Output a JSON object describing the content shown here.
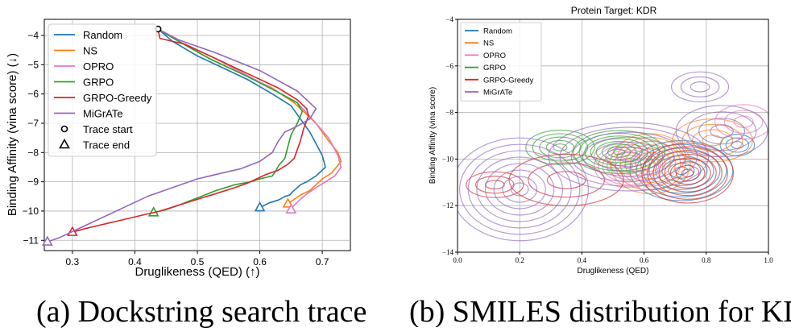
{
  "panel_a": {
    "caption": "(a) Dockstring search trace",
    "chart_data": {
      "type": "line",
      "title": "",
      "xlabel": "Druglikeness (QED) (↑)",
      "ylabel": "Binding Affinity (vina score) (↓)",
      "xlim": [
        0.255,
        0.745
      ],
      "ylim": [
        -11.35,
        -3.45
      ],
      "xticks": [
        0.3,
        0.4,
        0.5,
        0.6,
        0.7
      ],
      "xtick_labels": [
        "0.3",
        "0.4",
        "0.5",
        "0.6",
        "0.7"
      ],
      "yticks": [
        -4,
        -5,
        -6,
        -7,
        -8,
        -9,
        -10,
        -11
      ],
      "ytick_labels": [
        "−4",
        "−5",
        "−6",
        "−7",
        "−8",
        "−9",
        "−10",
        "−11"
      ],
      "grid": true,
      "legend_position": "top-left",
      "legend_markers": [
        {
          "label": "Trace start",
          "marker": "circle"
        },
        {
          "label": "Trace end",
          "marker": "triangle"
        }
      ],
      "start_point": {
        "x": 0.437,
        "y": -3.78
      },
      "series": [
        {
          "name": "Random",
          "color": "#1f77b4",
          "x": [
            0.437,
            0.46,
            0.5,
            0.54,
            0.58,
            0.62,
            0.65,
            0.68,
            0.7,
            0.705,
            0.69,
            0.675,
            0.665,
            0.66,
            0.652,
            0.648,
            0.64,
            0.63,
            0.615,
            0.6
          ],
          "y": [
            -3.78,
            -4.2,
            -4.7,
            -5.1,
            -5.5,
            -6.0,
            -6.4,
            -7.3,
            -8.1,
            -8.5,
            -8.8,
            -9.0,
            -9.1,
            -9.2,
            -9.35,
            -9.45,
            -9.5,
            -9.62,
            -9.72,
            -9.88
          ]
        },
        {
          "name": "NS",
          "color": "#ff7f0e",
          "x": [
            0.437,
            0.47,
            0.52,
            0.58,
            0.62,
            0.655,
            0.69,
            0.71,
            0.725,
            0.73,
            0.715,
            0.7,
            0.69,
            0.68,
            0.665,
            0.655,
            0.645
          ],
          "y": [
            -3.78,
            -4.2,
            -4.8,
            -5.4,
            -5.8,
            -6.3,
            -7.0,
            -7.6,
            -8.0,
            -8.3,
            -8.7,
            -8.9,
            -9.1,
            -9.3,
            -9.45,
            -9.6,
            -9.75
          ]
        },
        {
          "name": "OPRO",
          "color": "#e377c2",
          "x": [
            0.437,
            0.47,
            0.53,
            0.6,
            0.66,
            0.69,
            0.71,
            0.725,
            0.73,
            0.72,
            0.705,
            0.69,
            0.676,
            0.665,
            0.655,
            0.65
          ],
          "y": [
            -3.78,
            -4.2,
            -4.8,
            -5.6,
            -6.3,
            -7.0,
            -7.5,
            -8.1,
            -8.5,
            -8.8,
            -9.0,
            -9.2,
            -9.4,
            -9.6,
            -9.8,
            -9.95
          ]
        },
        {
          "name": "GRPO",
          "color": "#2ca02c",
          "x": [
            0.437,
            0.47,
            0.52,
            0.58,
            0.63,
            0.66,
            0.668,
            0.66,
            0.65,
            0.645,
            0.64,
            0.63,
            0.625,
            0.62,
            0.6,
            0.585,
            0.56,
            0.53,
            0.5,
            0.47,
            0.45,
            0.43
          ],
          "y": [
            -3.78,
            -4.2,
            -4.8,
            -5.4,
            -5.95,
            -6.3,
            -6.6,
            -7.0,
            -7.4,
            -7.8,
            -8.2,
            -8.45,
            -8.65,
            -8.8,
            -8.9,
            -9.0,
            -9.1,
            -9.3,
            -9.55,
            -9.8,
            -9.95,
            -10.05
          ]
        },
        {
          "name": "GRPO-Greedy",
          "color": "#d62728",
          "x": [
            0.437,
            0.44,
            0.48,
            0.53,
            0.58,
            0.63,
            0.66,
            0.675,
            0.678,
            0.67,
            0.665,
            0.66,
            0.655,
            0.645,
            0.63,
            0.61,
            0.595,
            0.58,
            0.56,
            0.53,
            0.5,
            0.47,
            0.44,
            0.41,
            0.38,
            0.35,
            0.32,
            0.3
          ],
          "y": [
            -3.78,
            -4.1,
            -4.3,
            -4.8,
            -5.3,
            -5.8,
            -6.2,
            -6.5,
            -6.75,
            -7.2,
            -7.6,
            -7.9,
            -8.2,
            -8.4,
            -8.6,
            -8.75,
            -8.9,
            -9.05,
            -9.2,
            -9.4,
            -9.6,
            -9.8,
            -10.0,
            -10.15,
            -10.3,
            -10.45,
            -10.6,
            -10.72
          ]
        },
        {
          "name": "MiGrATe",
          "color": "#9467bd",
          "x": [
            0.437,
            0.47,
            0.53,
            0.6,
            0.66,
            0.69,
            0.68,
            0.66,
            0.64,
            0.63,
            0.62,
            0.6,
            0.57,
            0.54,
            0.5,
            0.46,
            0.42,
            0.39,
            0.36,
            0.33,
            0.3,
            0.28,
            0.26
          ],
          "y": [
            -3.78,
            -4.15,
            -4.6,
            -5.2,
            -5.9,
            -6.5,
            -6.85,
            -7.1,
            -7.3,
            -7.6,
            -8.0,
            -8.3,
            -8.55,
            -8.7,
            -8.9,
            -9.2,
            -9.5,
            -9.8,
            -10.1,
            -10.4,
            -10.7,
            -10.9,
            -11.05
          ]
        }
      ]
    }
  },
  "panel_b": {
    "caption": "(b) SMILES distribution for KDR",
    "chart_data": {
      "type": "contour",
      "title": "Protein Target: KDR",
      "xlabel": "Druglikeness (QED)",
      "ylabel": "Binding Affinity (vina score)",
      "xlim": [
        0.0,
        1.0
      ],
      "ylim": [
        -14,
        -4
      ],
      "xticks": [
        0.0,
        0.2,
        0.4,
        0.6,
        0.8,
        1.0
      ],
      "xtick_labels": [
        "0.0",
        "0.2",
        "0.4",
        "0.6",
        "0.8",
        "1.0"
      ],
      "yticks": [
        -14,
        -12,
        -10,
        -8,
        -6,
        -4
      ],
      "ytick_labels": [
        "−14",
        "−12",
        "−10",
        "−8",
        "−6",
        "−4"
      ],
      "grid": true,
      "legend_position": "top-left",
      "series": [
        {
          "name": "Random",
          "color": "#1f77b4",
          "modes": [
            {
              "cx": 0.72,
              "cy": -10.5,
              "sx": 0.09,
              "sy": 0.7,
              "w": 1.0
            },
            {
              "cx": 0.9,
              "cy": -9.4,
              "sx": 0.03,
              "sy": 0.25,
              "w": 0.3
            }
          ]
        },
        {
          "name": "NS",
          "color": "#ff7f0e",
          "modes": [
            {
              "cx": 0.62,
              "cy": -10.2,
              "sx": 0.07,
              "sy": 0.7,
              "w": 1.0
            },
            {
              "cx": 0.82,
              "cy": -9.2,
              "sx": 0.07,
              "sy": 0.5,
              "w": 0.55
            }
          ]
        },
        {
          "name": "OPRO",
          "color": "#e377c2",
          "modes": [
            {
              "cx": 0.55,
              "cy": -10.3,
              "sx": 0.06,
              "sy": 0.5,
              "w": 1.0
            },
            {
              "cx": 0.92,
              "cy": -8.4,
              "sx": 0.05,
              "sy": 0.4,
              "w": 0.4
            }
          ]
        },
        {
          "name": "GRPO",
          "color": "#2ca02c",
          "modes": [
            {
              "cx": 0.52,
              "cy": -9.7,
              "sx": 0.08,
              "sy": 0.5,
              "w": 1.0
            },
            {
              "cx": 0.33,
              "cy": -9.5,
              "sx": 0.06,
              "sy": 0.4,
              "w": 0.6
            }
          ]
        },
        {
          "name": "GRPO-Greedy",
          "color": "#d62728",
          "modes": [
            {
              "cx": 0.74,
              "cy": -10.6,
              "sx": 0.08,
              "sy": 0.7,
              "w": 1.0
            },
            {
              "cx": 0.35,
              "cy": -10.9,
              "sx": 0.1,
              "sy": 0.6,
              "w": 0.4
            },
            {
              "cx": 0.12,
              "cy": -11.1,
              "sx": 0.05,
              "sy": 0.3,
              "w": 0.25
            }
          ]
        },
        {
          "name": "MiGrATe",
          "color": "#9467bd",
          "modes": [
            {
              "cx": 0.2,
              "cy": -11.3,
              "sx": 0.12,
              "sy": 1.2,
              "w": 1.0
            },
            {
              "cx": 0.55,
              "cy": -9.9,
              "sx": 0.14,
              "sy": 0.8,
              "w": 0.9
            },
            {
              "cx": 0.85,
              "cy": -8.8,
              "sx": 0.08,
              "sy": 0.6,
              "w": 0.5
            },
            {
              "cx": 0.78,
              "cy": -6.9,
              "sx": 0.05,
              "sy": 0.35,
              "w": 0.35
            }
          ]
        }
      ]
    }
  }
}
